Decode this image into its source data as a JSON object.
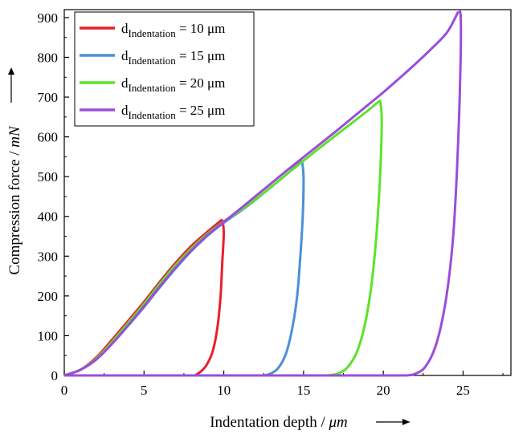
{
  "chart_data": {
    "type": "line",
    "xlabel": "Indentation depth / μm",
    "ylabel": "Compression force / mN",
    "xlabel_parts": {
      "text": "Indentation depth / ",
      "unit": "μm"
    },
    "ylabel_parts": {
      "text": "Compression force / ",
      "unit": "mN"
    },
    "xlim": [
      0,
      28
    ],
    "ylim": [
      0,
      920
    ],
    "x_ticks": [
      0,
      5,
      10,
      15,
      20,
      25
    ],
    "y_ticks": [
      0,
      100,
      200,
      300,
      400,
      500,
      600,
      700,
      800,
      900
    ],
    "grid": false,
    "legend_position": "top-left",
    "legend_label_parts": {
      "base": "d",
      "subscript": "Indentation"
    },
    "series": [
      {
        "name": "dIndentation = 10 μm",
        "legend_value": "= 10 μm",
        "color": "#e8202a",
        "loading": [
          [
            0,
            0
          ],
          [
            1,
            14
          ],
          [
            2,
            45
          ],
          [
            3,
            90
          ],
          [
            4,
            137
          ],
          [
            5,
            185
          ],
          [
            6,
            236
          ],
          [
            7,
            284
          ],
          [
            8,
            327
          ],
          [
            9,
            362
          ],
          [
            9.9,
            392
          ]
        ],
        "unloading": [
          [
            9.9,
            392
          ],
          [
            10.0,
            360
          ],
          [
            9.9,
            280
          ],
          [
            9.8,
            200
          ],
          [
            9.6,
            120
          ],
          [
            9.3,
            60
          ],
          [
            8.9,
            25
          ],
          [
            8.5,
            8
          ],
          [
            8.2,
            0
          ]
        ]
      },
      {
        "name": "dIndentation = 15 μm",
        "legend_value": "= 15 μm",
        "color": "#4a90d9",
        "loading": [
          [
            0,
            0
          ],
          [
            1,
            14
          ],
          [
            2,
            40
          ],
          [
            3,
            80
          ],
          [
            4,
            125
          ],
          [
            5,
            172
          ],
          [
            6,
            222
          ],
          [
            7,
            270
          ],
          [
            8,
            314
          ],
          [
            9,
            352
          ],
          [
            10,
            384
          ],
          [
            11,
            412
          ],
          [
            12,
            442
          ],
          [
            13,
            475
          ],
          [
            14,
            508
          ],
          [
            14.9,
            541
          ]
        ],
        "unloading": [
          [
            14.9,
            541
          ],
          [
            15.0,
            500
          ],
          [
            14.95,
            400
          ],
          [
            14.8,
            300
          ],
          [
            14.6,
            200
          ],
          [
            14.3,
            120
          ],
          [
            13.9,
            55
          ],
          [
            13.4,
            18
          ],
          [
            12.9,
            4
          ],
          [
            12.5,
            0
          ]
        ]
      },
      {
        "name": "dIndentation = 20 μm",
        "legend_value": "= 20 μm",
        "color": "#5de22a",
        "loading": [
          [
            0,
            0
          ],
          [
            1,
            14
          ],
          [
            2,
            42
          ],
          [
            3,
            85
          ],
          [
            4,
            132
          ],
          [
            5,
            180
          ],
          [
            6,
            231
          ],
          [
            7,
            279
          ],
          [
            8,
            321
          ],
          [
            9,
            357
          ],
          [
            10,
            387
          ],
          [
            11,
            414
          ],
          [
            12,
            443
          ],
          [
            13,
            475
          ],
          [
            14,
            508
          ],
          [
            15,
            540
          ],
          [
            16,
            572
          ],
          [
            17,
            603
          ],
          [
            18,
            634
          ],
          [
            19,
            665
          ],
          [
            19.8,
            692
          ]
        ],
        "unloading": [
          [
            19.8,
            692
          ],
          [
            19.9,
            650
          ],
          [
            19.85,
            550
          ],
          [
            19.7,
            430
          ],
          [
            19.5,
            320
          ],
          [
            19.2,
            210
          ],
          [
            18.8,
            120
          ],
          [
            18.3,
            55
          ],
          [
            17.7,
            18
          ],
          [
            17.1,
            4
          ],
          [
            16.5,
            0
          ]
        ]
      },
      {
        "name": "dIndentation = 25 μm",
        "legend_value": "= 25 μm",
        "color": "#9b4dd9",
        "loading": [
          [
            0,
            0
          ],
          [
            1,
            14
          ],
          [
            2,
            40
          ],
          [
            3,
            80
          ],
          [
            4,
            126
          ],
          [
            5,
            174
          ],
          [
            6,
            224
          ],
          [
            7,
            272
          ],
          [
            8,
            316
          ],
          [
            9,
            354
          ],
          [
            10,
            386
          ],
          [
            11,
            418
          ],
          [
            12,
            451
          ],
          [
            13,
            484
          ],
          [
            14,
            517
          ],
          [
            15,
            549
          ],
          [
            16,
            581
          ],
          [
            17,
            613
          ],
          [
            18,
            646
          ],
          [
            19,
            679
          ],
          [
            20,
            712
          ],
          [
            21,
            747
          ],
          [
            22,
            783
          ],
          [
            23,
            821
          ],
          [
            24,
            863
          ],
          [
            24.7,
            915
          ]
        ],
        "unloading": [
          [
            24.7,
            915
          ],
          [
            24.85,
            905
          ],
          [
            24.85,
            800
          ],
          [
            24.75,
            650
          ],
          [
            24.6,
            500
          ],
          [
            24.4,
            360
          ],
          [
            24.1,
            240
          ],
          [
            23.7,
            140
          ],
          [
            23.2,
            65
          ],
          [
            22.6,
            20
          ],
          [
            22.0,
            4
          ],
          [
            21.5,
            0
          ]
        ]
      }
    ]
  }
}
